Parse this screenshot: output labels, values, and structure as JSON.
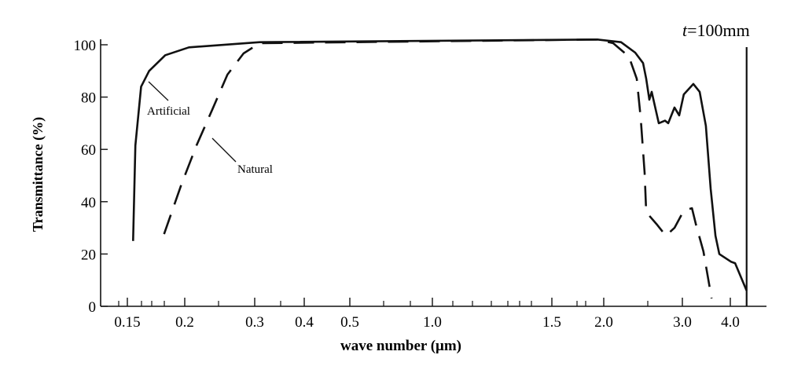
{
  "chart_data": {
    "type": "line",
    "title": "t=100mm",
    "xlabel": "wave number (μm)",
    "ylabel": "Transmittance (%)",
    "ylim": [
      0,
      100
    ],
    "x_ticks": [
      "0.15",
      "0.2",
      "0.3",
      "0.4",
      "0.5",
      "1.0",
      "1.5",
      "2.0",
      "3.0",
      "4.0"
    ],
    "y_ticks": [
      "0",
      "20",
      "40",
      "60",
      "80",
      "100"
    ],
    "grid": false,
    "series": [
      {
        "name": "Artificial",
        "style": "solid",
        "x": [
          0.155,
          0.157,
          0.162,
          0.169,
          0.183,
          0.206,
          0.31,
          1.94,
          2.22,
          2.4,
          2.5,
          2.54,
          2.58,
          2.61,
          2.64,
          2.7,
          2.78,
          2.82,
          2.9,
          2.96,
          3.03,
          3.23,
          3.36,
          3.49,
          3.59,
          3.69,
          3.77,
          4.02,
          4.1,
          4.34
        ],
        "y": [
          25,
          61.5,
          84,
          90,
          96,
          99,
          101,
          102,
          101,
          97,
          93,
          87,
          79,
          82,
          78,
          70,
          71,
          70,
          76,
          73,
          81,
          85,
          82,
          69,
          45,
          27,
          20,
          17,
          16.5,
          6
        ]
      },
      {
        "name": "Natural",
        "style": "dashed",
        "x": [
          0.182,
          0.197,
          0.217,
          0.239,
          0.261,
          0.284,
          0.31,
          1.94,
          2.12,
          2.32,
          2.42,
          2.47,
          2.52,
          2.54,
          2.67,
          2.79,
          2.9,
          3.03,
          3.2,
          3.28,
          3.44,
          3.61
        ],
        "y": [
          27.6,
          46.5,
          61.6,
          75,
          88.6,
          96.7,
          100.6,
          102,
          100.6,
          95.5,
          87,
          72,
          51,
          36,
          31.5,
          27,
          30,
          36.6,
          37.5,
          31.5,
          21,
          3
        ]
      }
    ],
    "annotations": [
      "Artificial",
      "Natural"
    ],
    "cutoff_line_x": 4.34
  }
}
